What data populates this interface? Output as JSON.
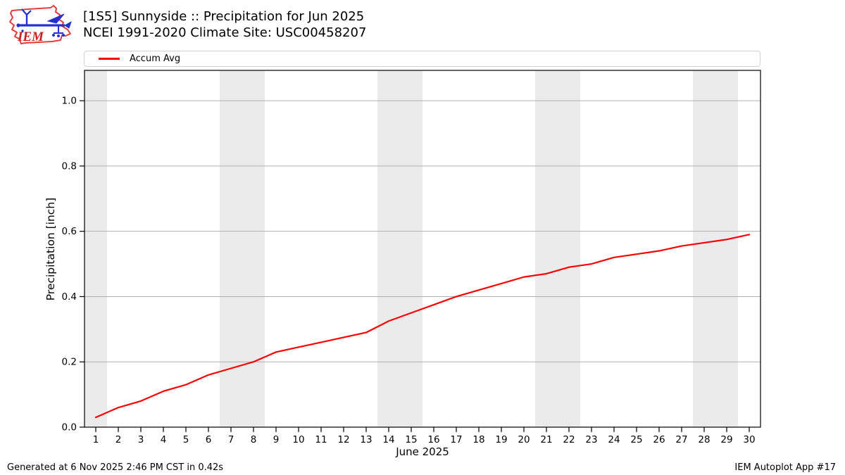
{
  "header": {
    "logo": {
      "text": "IEM",
      "outline_color": "#e23d3d",
      "vane_color": "#2233cc",
      "text_color": "#cc2020"
    },
    "title_line1": "[1S5] Sunnyside :: Precipitation for Jun 2025",
    "title_line2": "NCEI 1991-2020 Climate Site: USC00458207"
  },
  "legend": {
    "items": [
      {
        "label": "Accum Avg",
        "color": "#ff0000"
      }
    ]
  },
  "footer": {
    "generated_text": "Generated at 6 Nov 2025 2:46 PM CST in 0.42s",
    "app_text": "IEM Autoplot App #17"
  },
  "chart_data": {
    "type": "line",
    "title": "[1S5] Sunnyside :: Precipitation for Jun 2025",
    "subtitle": "NCEI 1991-2020 Climate Site: USC00458207",
    "xlabel": "June 2025",
    "ylabel": "Precipitation [inch]",
    "x": [
      1,
      2,
      3,
      4,
      5,
      6,
      7,
      8,
      9,
      10,
      11,
      12,
      13,
      14,
      15,
      16,
      17,
      18,
      19,
      20,
      21,
      22,
      23,
      24,
      25,
      26,
      27,
      28,
      29,
      30
    ],
    "series": [
      {
        "name": "Accum Avg",
        "color": "#ff0000",
        "values": [
          0.03,
          0.06,
          0.08,
          0.11,
          0.13,
          0.16,
          0.18,
          0.2,
          0.23,
          0.245,
          0.26,
          0.275,
          0.29,
          0.325,
          0.35,
          0.375,
          0.4,
          0.42,
          0.44,
          0.46,
          0.47,
          0.49,
          0.5,
          0.52,
          0.53,
          0.54,
          0.555,
          0.565,
          0.575,
          0.59
        ]
      }
    ],
    "xlim": [
      0.5,
      30.5
    ],
    "ylim": [
      0,
      1.093
    ],
    "xticks": [
      1,
      2,
      3,
      4,
      5,
      6,
      7,
      8,
      9,
      10,
      11,
      12,
      13,
      14,
      15,
      16,
      17,
      18,
      19,
      20,
      21,
      22,
      23,
      24,
      25,
      26,
      27,
      28,
      29,
      30
    ],
    "ytick_values": [
      0,
      0.2,
      0.4,
      0.6,
      0.8,
      1.0
    ],
    "ytick_labels": [
      "0.0",
      "0.2",
      "0.4",
      "0.6",
      "0.8",
      "1.0"
    ],
    "grid": true,
    "grid_color": "#b0b0b0",
    "weekend_bands": [
      [
        0.5,
        1.5
      ],
      [
        6.5,
        8.5
      ],
      [
        13.5,
        15.5
      ],
      [
        20.5,
        22.5
      ],
      [
        27.5,
        29.5
      ]
    ],
    "band_color": "#ebebeb",
    "frame_color": "#000000",
    "line_width": 2.2,
    "legend_position": "top"
  }
}
